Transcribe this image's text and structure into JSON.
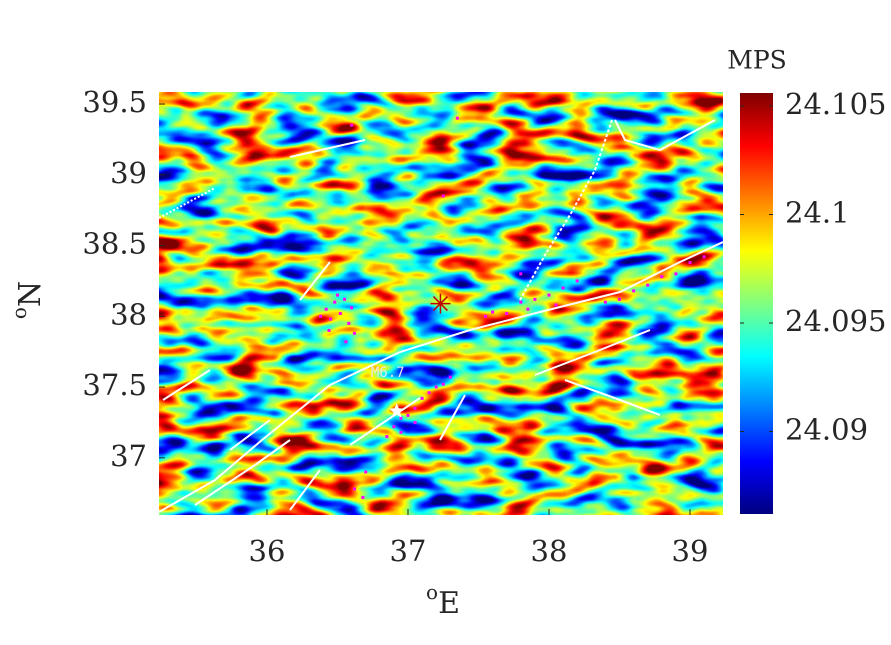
{
  "chart_data": {
    "type": "heatmap",
    "xlabel": {
      "sup": "o",
      "text": "E"
    },
    "ylabel": {
      "sup": "o",
      "text": "N"
    },
    "xlim": [
      35.234,
      39.234
    ],
    "ylim": [
      36.596,
      39.585
    ],
    "xticks": [
      36,
      37,
      38,
      39
    ],
    "yticks": [
      37,
      37.5,
      38,
      38.5,
      39,
      39.5
    ],
    "colormap": "jet",
    "colorbar": {
      "label": "MPS",
      "clim": [
        24.0862,
        24.1056
      ],
      "ticks": [
        24.09,
        24.095,
        24.1,
        24.105
      ]
    },
    "scatter": {
      "color": "#ff00ff",
      "x": [
        36.42,
        36.45,
        36.48,
        36.52,
        36.55,
        36.58,
        36.6,
        36.44,
        36.5,
        36.38,
        36.62,
        36.56,
        36.85,
        36.9,
        36.95,
        37.0,
        37.05,
        37.1,
        37.15,
        37.2,
        37.25,
        37.3,
        36.95,
        37.05,
        36.7,
        36.62,
        36.68,
        37.55,
        37.6,
        37.7,
        37.8,
        37.9,
        38.0,
        38.1,
        38.2,
        37.85,
        38.05,
        38.4,
        38.5,
        38.6,
        38.7,
        38.8,
        38.9,
        39.0,
        39.1,
        37.25,
        37.8,
        37.35,
        36.6
      ],
      "y": [
        38.05,
        37.98,
        38.1,
        38.02,
        38.12,
        37.95,
        38.06,
        37.9,
        38.15,
        38.0,
        37.88,
        37.82,
        37.15,
        37.22,
        37.28,
        37.3,
        37.35,
        37.42,
        37.46,
        37.5,
        37.52,
        37.57,
        37.18,
        37.25,
        36.9,
        36.78,
        36.72,
        38.0,
        38.03,
        38.02,
        38.1,
        38.12,
        38.15,
        38.2,
        38.25,
        38.05,
        38.08,
        38.1,
        38.12,
        38.18,
        38.22,
        38.28,
        38.3,
        38.38,
        38.42,
        38.85,
        38.3,
        39.4,
        39.35
      ]
    },
    "mainshock": {
      "label": "M6.7",
      "x": 36.92,
      "y": 37.33,
      "color": "#ffffff"
    },
    "epicenter": {
      "x": 37.23,
      "y": 38.09,
      "color": "#c00000"
    }
  }
}
